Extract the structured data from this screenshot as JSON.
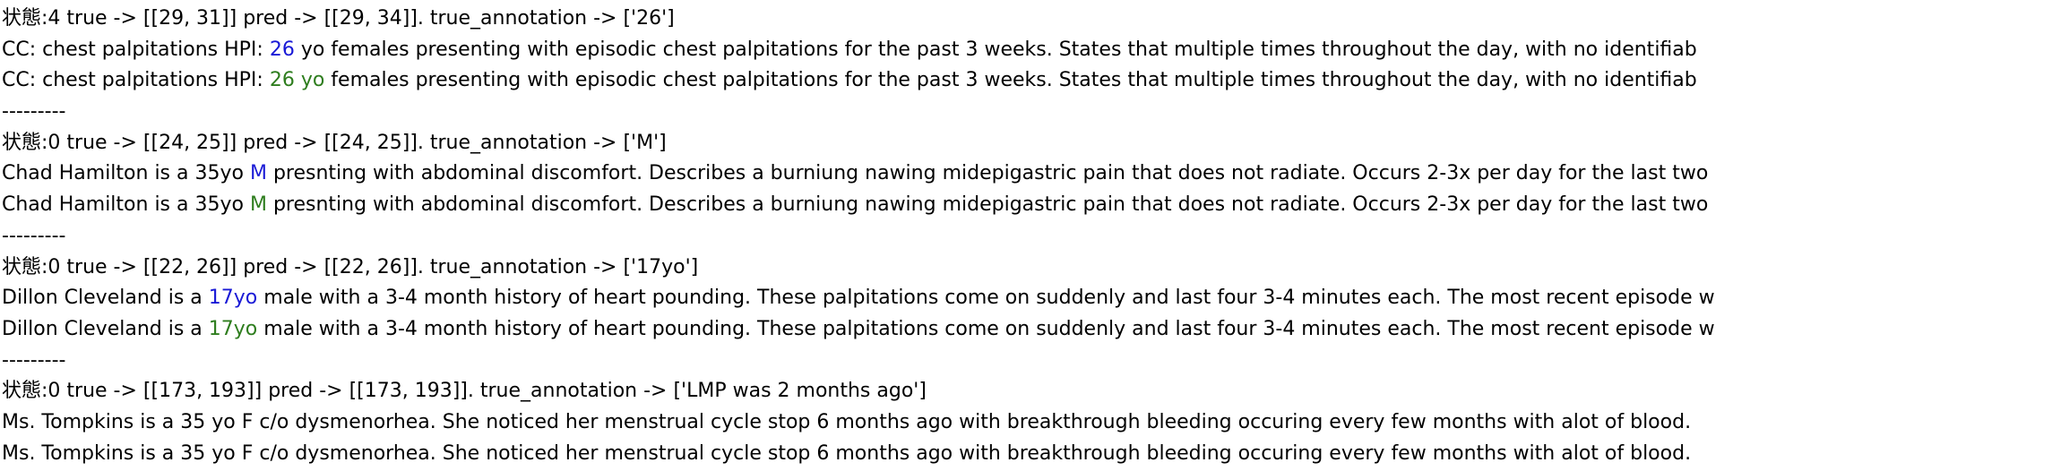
{
  "colors": {
    "true_highlight": "#1a1ad6",
    "pred_highlight": "#2e7d1e",
    "text": "#000000",
    "background": "#ffffff"
  },
  "blocks": [
    {
      "header": "状態:4 true -> [[29, 31]] pred -> [[29, 34]].  true_annotation -> ['26']",
      "true_line": {
        "before": "CC: chest palpitations HPI: ",
        "highlight": "26",
        "after": " yo females presenting with episodic chest palpitations for the past 3 weeks. States that multiple times throughout the day, with no identifiab"
      },
      "pred_line": {
        "before": "CC: chest palpitations HPI: ",
        "highlight": "26 yo",
        "after": " females presenting with episodic chest palpitations for the past 3 weeks. States that multiple times throughout the day, with no identifiab"
      },
      "separator": "---------"
    },
    {
      "header": "状態:0 true -> [[24, 25]] pred -> [[24, 25]].  true_annotation -> ['M']",
      "true_line": {
        "before": "Chad Hamilton is a 35yo ",
        "highlight": "M",
        "after": " presnting with abdominal discomfort. Describes a burniung nawing midepigastric pain that does not radiate. Occurs 2-3x per day for the last two"
      },
      "pred_line": {
        "before": "Chad Hamilton is a 35yo ",
        "highlight": "M",
        "after": " presnting with abdominal discomfort. Describes a burniung nawing midepigastric pain that does not radiate. Occurs 2-3x per day for the last two"
      },
      "separator": "---------"
    },
    {
      "header": "状態:0 true -> [[22, 26]] pred -> [[22, 26]].  true_annotation -> ['17yo']",
      "true_line": {
        "before": "Dillon Cleveland is a ",
        "highlight": "17yo",
        "after": " male with a 3-4 month history of heart pounding. These palpitations come on suddenly and last four 3-4 minutes each. The most recent episode w"
      },
      "pred_line": {
        "before": "Dillon Cleveland is a ",
        "highlight": "17yo",
        "after": " male with a 3-4 month history of heart pounding. These palpitations come on suddenly and last four 3-4 minutes each. The most recent episode w"
      },
      "separator": "---------"
    },
    {
      "header": "状態:0 true -> [[173, 193]] pred -> [[173, 193]].  true_annotation -> ['LMP was 2 months ago']",
      "true_line": {
        "before": "Ms. Tompkins is a 35 yo F c/o dysmenorhea. She noticed her menstrual cycle stop 6 months ago with breakthrough bleeding occuring every few months with alot of blood.",
        "highlight": "",
        "after": ""
      },
      "pred_line": {
        "before": "Ms. Tompkins is a 35 yo F c/o dysmenorhea. She noticed her menstrual cycle stop 6 months ago with breakthrough bleeding occuring every few months with alot of blood.",
        "highlight": "",
        "after": ""
      }
    }
  ]
}
